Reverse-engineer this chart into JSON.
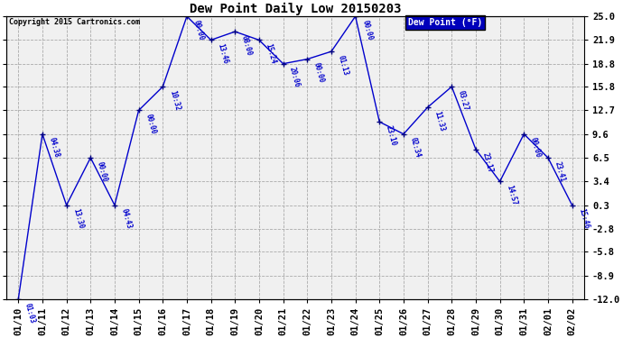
{
  "title": "Dew Point Daily Low 20150203",
  "copyright": "Copyright 2015 Cartronics.com",
  "legend_label": "Dew Point (°F)",
  "yticks": [
    25.0,
    21.9,
    18.8,
    15.8,
    12.7,
    9.6,
    6.5,
    3.4,
    0.3,
    -2.8,
    -5.8,
    -8.9,
    -12.0
  ],
  "ytick_labels": [
    "25.0",
    "21.9",
    "18.8",
    "15.8",
    "12.7",
    "9.6",
    "6.5",
    "3.4",
    "0.3",
    "-2.8",
    "-5.8",
    "-8.9",
    "-12.0"
  ],
  "ylim": [
    -12.0,
    25.0
  ],
  "dates": [
    "01/10",
    "01/11",
    "01/12",
    "01/13",
    "01/14",
    "01/15",
    "01/16",
    "01/17",
    "01/18",
    "01/19",
    "01/20",
    "01/21",
    "01/22",
    "01/23",
    "01/24",
    "01/25",
    "01/26",
    "01/27",
    "01/28",
    "01/29",
    "01/30",
    "01/31",
    "02/01",
    "02/02"
  ],
  "values": [
    -12.0,
    9.6,
    0.3,
    6.5,
    0.3,
    12.7,
    15.8,
    25.0,
    21.9,
    23.0,
    21.9,
    18.8,
    19.4,
    20.4,
    25.0,
    11.2,
    9.6,
    13.1,
    15.8,
    7.6,
    3.4,
    9.6,
    6.5,
    0.3
  ],
  "point_labels": [
    "01:03",
    "04:38",
    "13:30",
    "00:00",
    "04:43",
    "00:00",
    "10:32",
    "00:00",
    "13:46",
    "08:00",
    "15:24",
    "20:06",
    "00:00",
    "01:13",
    "00:00",
    "23:10",
    "02:34",
    "11:33",
    "03:27",
    "23:17",
    "14:57",
    "00:00",
    "23:41",
    "15:46"
  ],
  "line_color": "#0000cc",
  "dot_color": "#000080",
  "bg_color": "#ffffff",
  "plot_bg_color": "#f0f0f0",
  "grid_color": "#aaaaaa",
  "label_color": "#0000cc",
  "title_color": "#000000",
  "copyright_color": "#000000",
  "legend_bg": "#0000bb",
  "legend_fg": "#ffffff",
  "axis_label_color": "#000000",
  "tick_label_fontsize": 7.5,
  "title_fontsize": 10,
  "label_fontsize": 5.5,
  "legend_fontsize": 7
}
